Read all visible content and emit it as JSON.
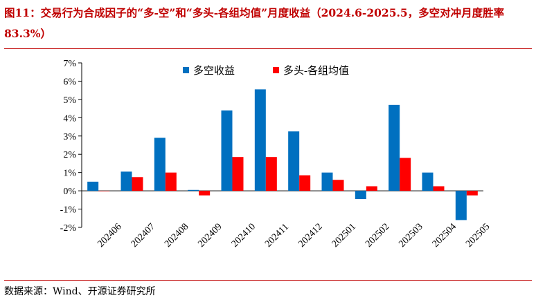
{
  "figure": {
    "title": "图11：交易行为合成因子的“多-空”和“多头-各组均值”月度收益（2024.6-2025.5，多空对冲月度胜率 83.3%）",
    "source": "数据来源：Wind、开源证券研究所"
  },
  "colors": {
    "title": "#c00000",
    "series_long_short": "#0070c0",
    "series_long_vs_mean": "#ff0000"
  },
  "chart_data": {
    "type": "bar",
    "categories": [
      "202406",
      "202407",
      "202408",
      "202409",
      "202410",
      "202411",
      "202412",
      "202501",
      "202502",
      "202503",
      "202504",
      "202505"
    ],
    "series": [
      {
        "name": "多空收益",
        "values": [
          0.5,
          1.05,
          2.9,
          0.05,
          4.4,
          5.55,
          3.25,
          1.0,
          -0.45,
          4.7,
          1.0,
          -1.6
        ]
      },
      {
        "name": "多头-各组均值",
        "values": [
          0.0,
          0.75,
          1.0,
          -0.25,
          1.85,
          1.85,
          0.85,
          0.6,
          0.25,
          1.8,
          0.25,
          -0.25
        ]
      }
    ],
    "ylim": [
      -2,
      7
    ],
    "yticks": [
      -2,
      -1,
      0,
      1,
      2,
      3,
      4,
      5,
      6,
      7
    ],
    "ytick_labels": [
      "-2%",
      "-1%",
      "0%",
      "1%",
      "2%",
      "3%",
      "4%",
      "5%",
      "6%",
      "7%"
    ],
    "legend_position": "top-center",
    "grid": false
  }
}
